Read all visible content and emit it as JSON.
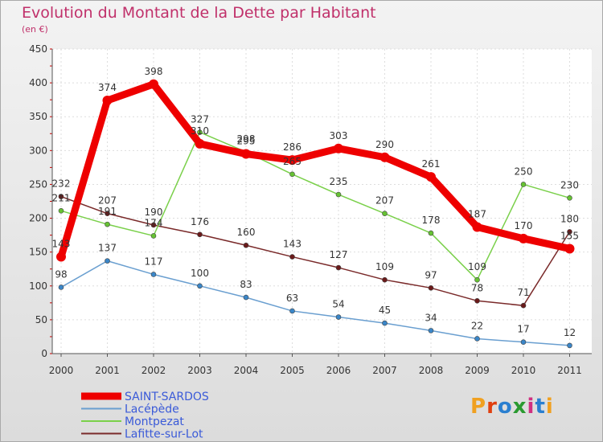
{
  "title": "Evolution du Montant de la Dette par Habitant",
  "unit": "(en €)",
  "brand": {
    "letters": [
      "P",
      "r",
      "o",
      "x",
      "i",
      "t",
      "i"
    ],
    "colors": [
      "#f0a020",
      "#e04010",
      "#2a7fd0",
      "#2a9a30",
      "#d03080",
      "#2a7fd0",
      "#f0a020"
    ]
  },
  "chart_data": {
    "type": "line",
    "x": [
      "2000",
      "2001",
      "2002",
      "2003",
      "2004",
      "2005",
      "2006",
      "2007",
      "2008",
      "2009",
      "2010",
      "2011"
    ],
    "ylim": [
      0,
      450
    ],
    "yticks": [
      "0",
      "50",
      "100",
      "150",
      "200",
      "250",
      "300",
      "350",
      "400",
      "450"
    ],
    "grid": true,
    "legend_position": "bottom-left",
    "series": [
      {
        "name": "Lacépède",
        "color": "#6a9fd0",
        "point_color": "#3a86c8",
        "values": [
          98,
          137,
          117,
          100,
          83,
          63,
          54,
          45,
          34,
          22,
          17,
          12
        ],
        "labels": [
          "98",
          "137",
          "117",
          "100",
          "83",
          "63",
          "54",
          "45",
          "34",
          "22",
          "17",
          "12"
        ]
      },
      {
        "name": "Lafitte-sur-Lot",
        "color": "#7a2a2a",
        "point_color": "#6a1a1a",
        "values": [
          232,
          207,
          190,
          176,
          160,
          143,
          127,
          109,
          97,
          78,
          71,
          180
        ],
        "labels": [
          "232",
          "207",
          "190",
          "176",
          "160",
          "143",
          "127",
          "109",
          "97",
          "78",
          "71",
          "180"
        ]
      },
      {
        "name": "Montpezat",
        "color": "#7ad04a",
        "point_color": "#66c233",
        "values": [
          211,
          191,
          174,
          327,
          298,
          265,
          235,
          207,
          178,
          109,
          250,
          230
        ],
        "labels": [
          "211",
          "191",
          "174",
          "327",
          "298",
          "265",
          "235",
          "207",
          "178",
          "109",
          "250",
          "230"
        ]
      },
      {
        "name": "SAINT-SARDOS",
        "color": "#ee0000",
        "point_color": "#ee0000",
        "values": [
          143,
          374,
          398,
          310,
          295,
          286,
          303,
          290,
          261,
          187,
          170,
          155
        ],
        "labels": [
          "143",
          "374",
          "398",
          "310",
          "295",
          "286",
          "303",
          "290",
          "261",
          "187",
          "170",
          "155"
        ]
      }
    ],
    "legend": [
      {
        "name": "SAINT-SARDOS",
        "color": "#ee0000",
        "label_color": "#3a5ad8"
      },
      {
        "name": "Lacépède",
        "color": "#6a9fd0",
        "label_color": "#3a5ad8"
      },
      {
        "name": "Montpezat",
        "color": "#7ad04a",
        "label_color": "#3a5ad8"
      },
      {
        "name": "Lafitte-sur-Lot",
        "color": "#7a2a2a",
        "label_color": "#3a5ad8"
      }
    ]
  }
}
